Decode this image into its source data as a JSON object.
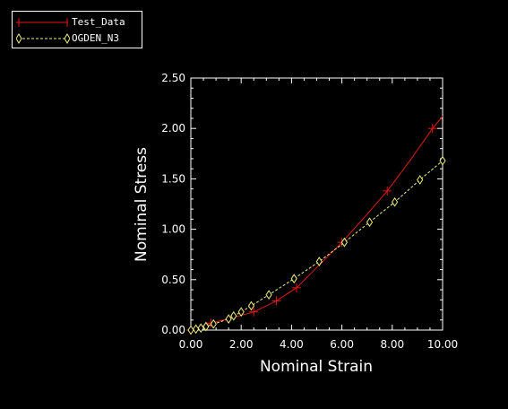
{
  "chart_data": {
    "type": "line",
    "title": "",
    "xlabel": "Nominal Strain",
    "ylabel": "Nominal Stress",
    "xlim": [
      0,
      10
    ],
    "ylim": [
      0,
      2.5
    ],
    "x_tick_labels": [
      "0.00",
      "2.00",
      "4.00",
      "6.00",
      "8.00",
      "10.00"
    ],
    "y_tick_labels": [
      "0.00",
      "0.50",
      "1.00",
      "1.50",
      "2.00",
      "2.50"
    ],
    "grid": false,
    "legend_position": "top-left",
    "series": [
      {
        "name": "Test_Data",
        "color": "#e01818",
        "line": "solid",
        "marker": "plus",
        "x": [
          0.0,
          0.8,
          2.5,
          3.4,
          4.2,
          6.0,
          7.8,
          9.6
        ],
        "y": [
          0.0,
          0.07,
          0.18,
          0.29,
          0.42,
          0.87,
          1.38,
          2.0
        ],
        "x_curve": [
          0.0,
          0.4,
          0.8,
          1.6,
          2.5,
          3.4,
          4.2,
          5.0,
          6.0,
          6.9,
          7.8,
          8.7,
          9.6,
          10.0
        ],
        "y_curve": [
          0.0,
          0.035,
          0.07,
          0.12,
          0.18,
          0.29,
          0.42,
          0.62,
          0.87,
          1.12,
          1.38,
          1.68,
          2.0,
          2.12
        ]
      },
      {
        "name": "OGDEN_N3",
        "color": "#f0f080",
        "line": "dashed",
        "marker": "diamond",
        "x": [
          0.0,
          0.2,
          0.4,
          0.6,
          0.9,
          1.5,
          1.7,
          2.0,
          2.4,
          3.1,
          4.1,
          5.1,
          6.1,
          7.1,
          8.1,
          9.1,
          10.0
        ],
        "y": [
          0.0,
          0.01,
          0.02,
          0.035,
          0.06,
          0.11,
          0.14,
          0.18,
          0.24,
          0.35,
          0.51,
          0.68,
          0.87,
          1.07,
          1.27,
          1.49,
          1.68
        ]
      }
    ]
  }
}
